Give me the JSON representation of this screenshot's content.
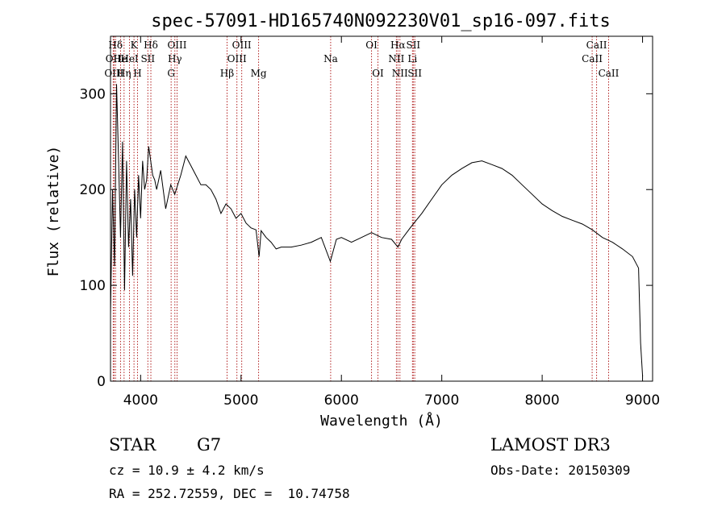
{
  "chart_data": {
    "type": "line",
    "title": "spec-57091-HD165740N092230V01_sp16-097.fits",
    "xlabel": "Wavelength (Å)",
    "ylabel": "Flux (relative)",
    "xlim": [
      3700,
      9100
    ],
    "ylim": [
      0,
      360
    ],
    "xticks": [
      4000,
      5000,
      6000,
      7000,
      8000,
      9000
    ],
    "yticks": [
      0,
      100,
      200,
      300
    ],
    "line_color": "#000000",
    "marker_color": "#b22222",
    "series": [
      {
        "name": "spectrum",
        "x": [
          3700,
          3720,
          3740,
          3760,
          3780,
          3800,
          3820,
          3840,
          3860,
          3880,
          3900,
          3920,
          3940,
          3960,
          3980,
          4000,
          4020,
          4040,
          4060,
          4080,
          4100,
          4120,
          4140,
          4160,
          4200,
          4250,
          4300,
          4340,
          4400,
          4450,
          4500,
          4550,
          4600,
          4650,
          4700,
          4750,
          4800,
          4850,
          4900,
          4950,
          5000,
          5050,
          5100,
          5150,
          5180,
          5200,
          5250,
          5300,
          5350,
          5400,
          5500,
          5600,
          5700,
          5800,
          5890,
          5950,
          6000,
          6100,
          6200,
          6300,
          6400,
          6500,
          6563,
          6600,
          6700,
          6800,
          6900,
          7000,
          7100,
          7200,
          7300,
          7400,
          7500,
          7600,
          7700,
          7800,
          7900,
          8000,
          8100,
          8200,
          8300,
          8400,
          8500,
          8600,
          8700,
          8800,
          8900,
          8960,
          8980,
          9000
        ],
        "y": [
          70,
          200,
          120,
          310,
          230,
          150,
          250,
          95,
          230,
          140,
          190,
          110,
          200,
          150,
          215,
          170,
          230,
          200,
          210,
          245,
          230,
          215,
          210,
          200,
          220,
          180,
          205,
          195,
          215,
          235,
          225,
          215,
          205,
          205,
          200,
          190,
          175,
          185,
          180,
          170,
          175,
          165,
          160,
          158,
          130,
          157,
          150,
          145,
          138,
          140,
          140,
          142,
          145,
          150,
          125,
          148,
          150,
          145,
          150,
          155,
          150,
          148,
          140,
          148,
          162,
          175,
          190,
          205,
          215,
          222,
          228,
          230,
          226,
          222,
          215,
          205,
          195,
          185,
          178,
          172,
          168,
          164,
          158,
          150,
          145,
          138,
          130,
          118,
          40,
          5
        ]
      }
    ],
    "lines": [
      {
        "label": "Hδ",
        "x": 3750,
        "row": 0
      },
      {
        "label": "OII",
        "x": 3727,
        "row": 1
      },
      {
        "label": "OIII",
        "x": 3735,
        "row": 2
      },
      {
        "label": "He",
        "x": 3800,
        "row": 1
      },
      {
        "label": "Hη",
        "x": 3835,
        "row": 2
      },
      {
        "label": "HeI",
        "x": 3889,
        "row": 1
      },
      {
        "label": "K",
        "x": 3934,
        "row": 0
      },
      {
        "label": "H",
        "x": 3969,
        "row": 2
      },
      {
        "label": "SII",
        "x": 4072,
        "row": 1
      },
      {
        "label": "Hδ",
        "x": 4102,
        "row": 0
      },
      {
        "label": "OIII",
        "x": 4363,
        "row": 0
      },
      {
        "label": "Hγ",
        "x": 4341,
        "row": 1
      },
      {
        "label": "G",
        "x": 4304,
        "row": 2
      },
      {
        "label": "Hβ",
        "x": 4861,
        "row": 2
      },
      {
        "label": "OIII",
        "x": 5007,
        "row": 0
      },
      {
        "label": "OIII",
        "x": 4959,
        "row": 1
      },
      {
        "label": "Mg",
        "x": 5175,
        "row": 2
      },
      {
        "label": "Na",
        "x": 5893,
        "row": 1
      },
      {
        "label": "OI",
        "x": 6300,
        "row": 0
      },
      {
        "label": "OI",
        "x": 6364,
        "row": 2
      },
      {
        "label": "Hα",
        "x": 6563,
        "row": 0
      },
      {
        "label": "NII",
        "x": 6548,
        "row": 1
      },
      {
        "label": "NII",
        "x": 6583,
        "row": 2
      },
      {
        "label": "SII",
        "x": 6716,
        "row": 0
      },
      {
        "label": "Li",
        "x": 6708,
        "row": 1
      },
      {
        "label": "SII",
        "x": 6731,
        "row": 2
      },
      {
        "label": "CaII",
        "x": 8542,
        "row": 0
      },
      {
        "label": "CaII",
        "x": 8498,
        "row": 1
      },
      {
        "label": "CaII",
        "x": 8662,
        "row": 2
      }
    ]
  },
  "footer": {
    "object_type": "STAR",
    "subclass": "G7",
    "cz": "cz = 10.9 ± 4.2 km/s",
    "coords": "RA = 252.72559, DEC =  10.74758",
    "survey": "LAMOST DR3",
    "obs_date": "Obs-Date: 20150309"
  }
}
